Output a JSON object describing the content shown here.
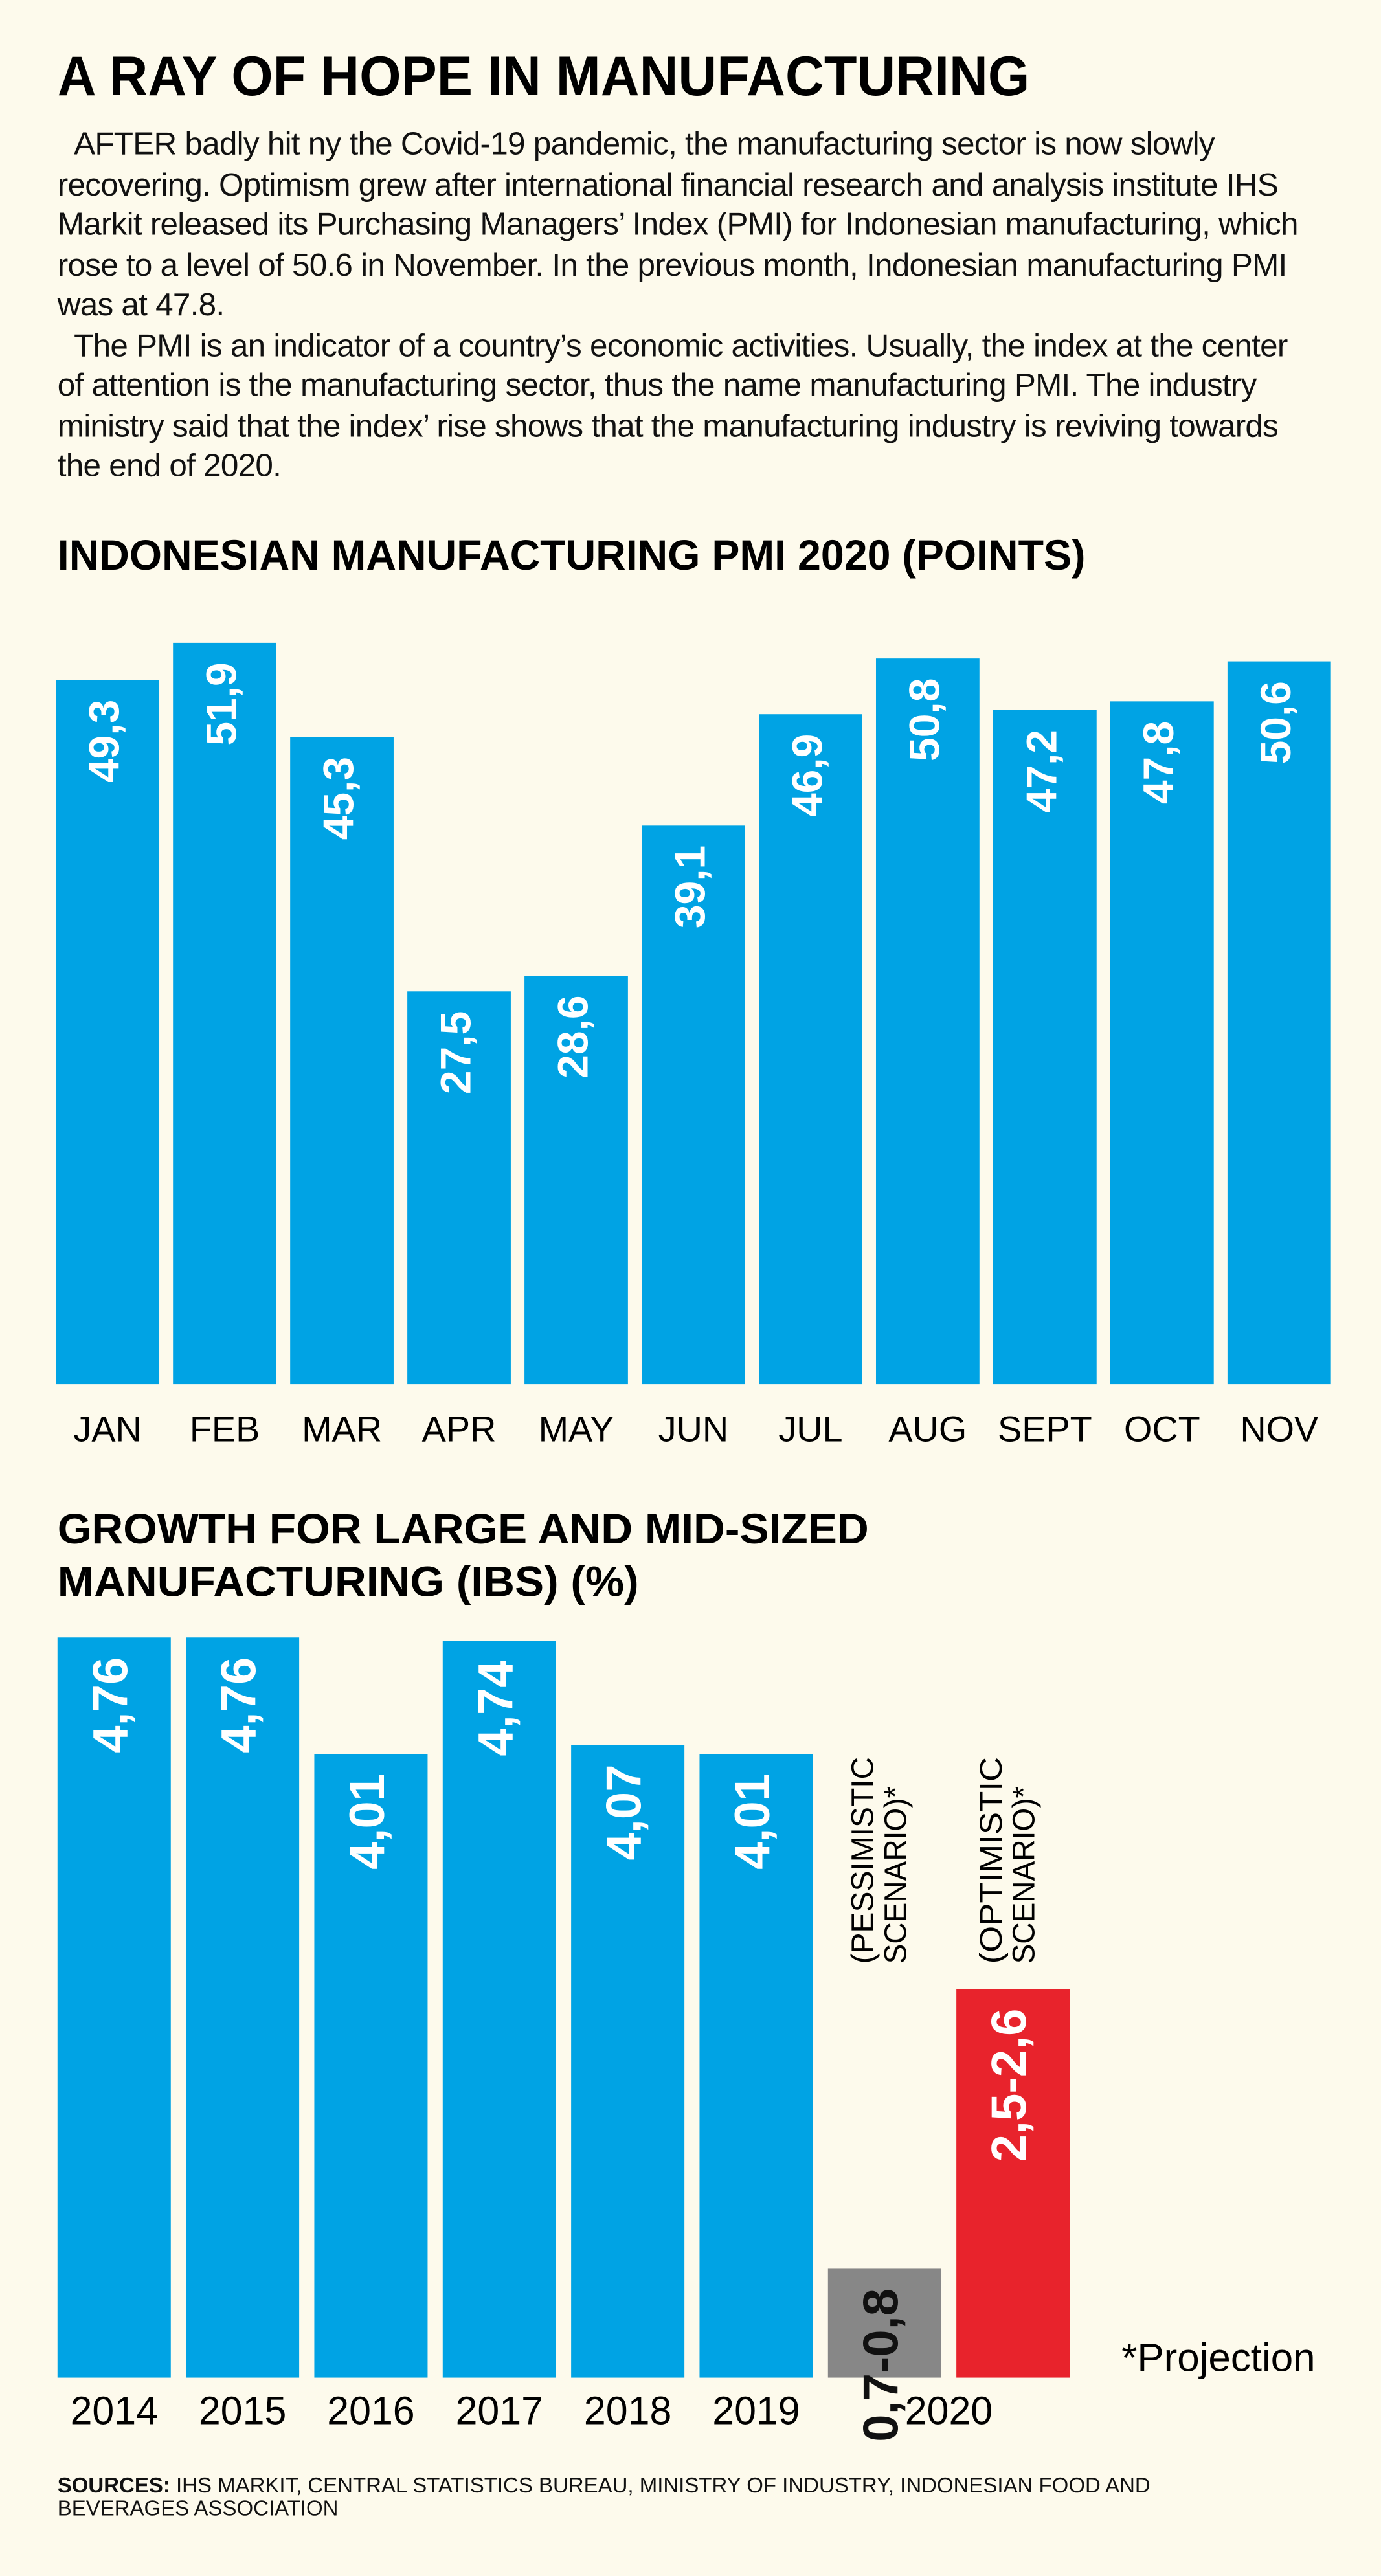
{
  "header": {
    "title": "A RAY OF HOPE IN MANUFACTURING",
    "paragraphs": [
      "AFTER badly hit ny the Covid-19 pandemic, the manufacturing sector is now slowly recovering. Optimism grew after international financial research and analysis institute IHS Markit released its Purchasing Managers’ Index (PMI) for Indonesian manufacturing, which rose to a level of 50.6 in November. In the previous month, Indonesian manufacturing PMI was at 47.8.",
      "The PMI is an indicator of a country’s economic activities. Usually, the index at the center of attention is the manufacturing sector, thus the name manufacturing PMI. The industry ministry said that the index’ rise shows that the manufacturing industry is reviving towards the end of 2020."
    ]
  },
  "chart_data": [
    {
      "type": "bar",
      "title": [
        "INDONESIAN MANUFACTURING PMI 2020 (POINTS)"
      ],
      "categories": [
        "JAN",
        "FEB",
        "MAR",
        "APR",
        "MAY",
        "JUN",
        "JUL",
        "AUG",
        "SEPT",
        "OCT",
        "NOV"
      ],
      "values": [
        49.3,
        51.9,
        45.3,
        27.5,
        28.6,
        39.1,
        46.9,
        50.8,
        47.2,
        47.8,
        50.6
      ],
      "value_labels": [
        "49,3",
        "51,9",
        "45,3",
        "27,5",
        "28,6",
        "39,1",
        "46,9",
        "50,8",
        "47,2",
        "47,8",
        "50,6"
      ],
      "color": "#00a3e4",
      "value_label_color": "#ffffff",
      "ylim": [
        0,
        52
      ]
    },
    {
      "type": "bar",
      "title": [
        "GROWTH FOR LARGE AND MID-SIZED",
        "MANUFACTURING (IBS) (%)"
      ],
      "categories": [
        "2014",
        "2015",
        "2016",
        "2017",
        "2018",
        "2019",
        null,
        null
      ],
      "group_label": "2020",
      "values": [
        4.76,
        4.76,
        4.01,
        4.74,
        4.07,
        4.01,
        0.7,
        2.5
      ],
      "value_labels": [
        "4,76",
        "4,76",
        "4,01",
        "4,74",
        "4,07",
        "4,01",
        "0,7-0,8",
        "2,5-2,6"
      ],
      "colors": [
        "#00a3e4",
        "#00a3e4",
        "#00a3e4",
        "#00a3e4",
        "#00a3e4",
        "#00a3e4",
        "#878787",
        "#e8232c"
      ],
      "value_label_colors": [
        "#ffffff",
        "#ffffff",
        "#ffffff",
        "#ffffff",
        "#ffffff",
        "#ffffff",
        "#111111",
        "#ffffff"
      ],
      "annotations": [
        {
          "lines": [
            "(PESSIMISTIC",
            "SCENARIO)*"
          ]
        },
        {
          "lines": [
            "(OPTIMISTIC",
            "SCENARIO)*"
          ]
        }
      ],
      "note": "*Projection",
      "ylim": [
        0,
        5
      ]
    }
  ],
  "sources": {
    "label": "SOURCES:",
    "text": "IHS MARKIT, CENTRAL STATISTICS BUREAU, MINISTRY OF INDUSTRY, INDONESIAN FOOD AND BEVERAGES ASSOCIATION"
  }
}
